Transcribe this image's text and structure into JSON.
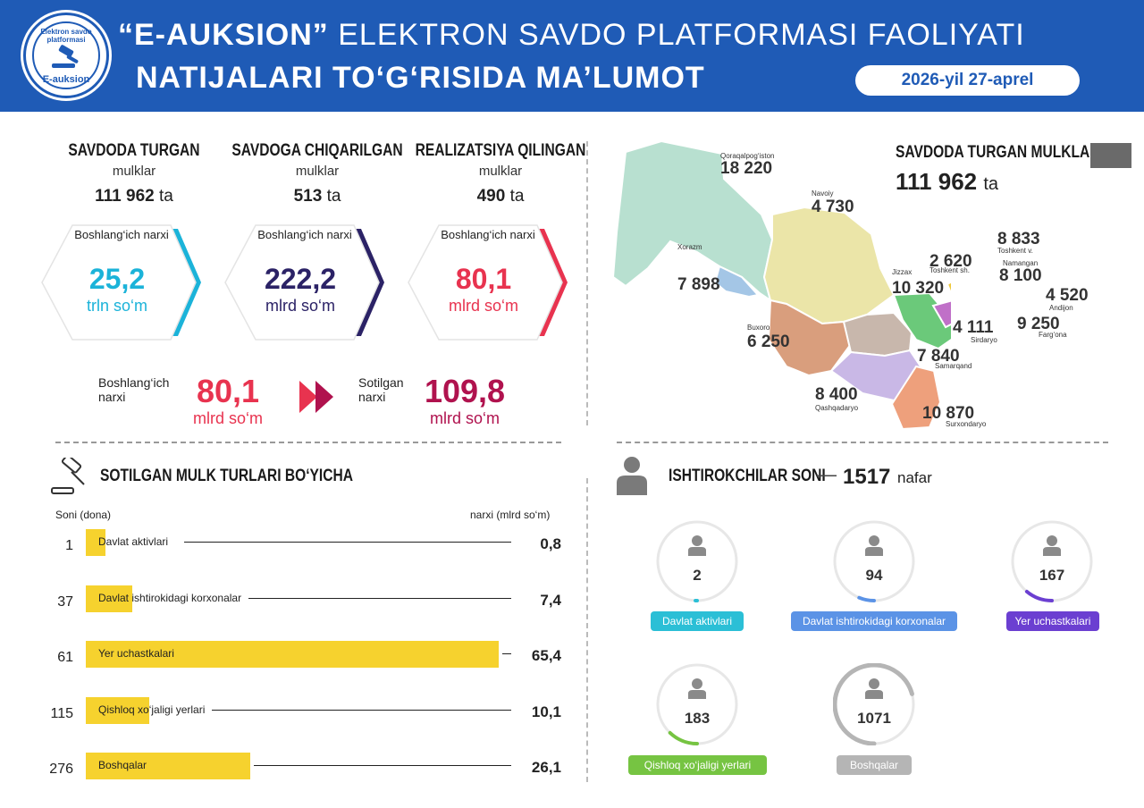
{
  "header": {
    "title_quoted": "“E-AUKSION”",
    "title_rest": "ELEKTRON SAVDO PLATFORMASI FAOLIYATI",
    "title_line2": "NATIJALARI TO‘G‘RISIDA MA’LUMOT",
    "date": "2026-yil 27-aprel",
    "logo_top": "Elektron savdo platformasi",
    "logo_bottom": "E-auksion"
  },
  "stats": [
    {
      "title": "SAVDODA TURGAN",
      "sub": "mulklar",
      "count": "111 962",
      "count_unit": "ta",
      "hex_label": "Boshlang‘ich narxi",
      "hex_value": "25,2",
      "hex_unit": "trln so‘m",
      "color": "#1bb3d9"
    },
    {
      "title": "SAVDOGA CHIQARILGAN",
      "sub": "mulklar",
      "count": "513",
      "count_unit": "ta",
      "hex_label": "Boshlang‘ich narxi",
      "hex_value": "222,2",
      "hex_unit": "mlrd so‘m",
      "color": "#2b2266"
    },
    {
      "title": "REALIZATSIYA QILINGAN",
      "sub": "mulklar",
      "count": "490",
      "count_unit": "ta",
      "hex_label": "Boshlang‘ich narxi",
      "hex_value": "80,1",
      "hex_unit": "mlrd so‘m",
      "color": "#e8334f"
    }
  ],
  "compare": {
    "start_label": "Boshlang‘ich narxi",
    "start_value": "80,1",
    "start_unit": "mlrd so‘m",
    "sold_label": "Sotilgan narxi",
    "sold_value": "109,8",
    "sold_unit": "mlrd so‘m",
    "start_color": "#e8334f",
    "sold_color": "#b0124e"
  },
  "map": {
    "title": "SAVDODA TURGAN MULKLAR",
    "total": "111 962",
    "total_unit": "ta",
    "regions": [
      {
        "name": "Qoraqalpog‘iston",
        "value": "18 220"
      },
      {
        "name": "Navoiy",
        "value": "4 730"
      },
      {
        "name": "Xorazm",
        "value": "7 898"
      },
      {
        "name": "Buxoro",
        "value": "6 250"
      },
      {
        "name": "Jizzax",
        "value": "10 320"
      },
      {
        "name": "Toshkent sh.",
        "value": "2 620"
      },
      {
        "name": "Toshkent v.",
        "value": "8 833"
      },
      {
        "name": "Namangan",
        "value": "8 100"
      },
      {
        "name": "Andijon",
        "value": "4 520"
      },
      {
        "name": "Farg‘ona",
        "value": "9 250"
      },
      {
        "name": "Sirdaryo",
        "value": "4 111"
      },
      {
        "name": "Samarqand",
        "value": "7 840"
      },
      {
        "name": "Qashqadaryo",
        "value": "8 400"
      },
      {
        "name": "Surxondaryo",
        "value": "10 870"
      }
    ]
  },
  "types": {
    "title": "SOTILGAN MULK TURLARI BO‘YICHA",
    "left_header": "Soni (dona)",
    "right_header": "narxi (mlrd so‘m)",
    "rows": [
      {
        "count": "1",
        "label": "Davlat aktivlari",
        "value": 0.8,
        "value_text": "0,8"
      },
      {
        "count": "37",
        "label": "Davlat ishtirokidagi korxonalar",
        "value": 7.4,
        "value_text": "7,4"
      },
      {
        "count": "61",
        "label": "Yer uchastkalari",
        "value": 65.4,
        "value_text": "65,4"
      },
      {
        "count": "115",
        "label": "Qishloq xo‘jaligi yerlari",
        "value": 10.1,
        "value_text": "10,1"
      },
      {
        "count": "276",
        "label": "Boshqalar",
        "value": 26.1,
        "value_text": "26,1"
      }
    ]
  },
  "participants": {
    "title": "ISHTIROKCHILAR SONI",
    "dash": "—",
    "total": "1517",
    "total_unit": "nafar",
    "items": [
      {
        "value": 2,
        "label": "Davlat aktivlari",
        "color": "#2bbfd6"
      },
      {
        "value": 94,
        "label": "Davlat ishtirokidagi korxonalar",
        "color": "#5b93e6"
      },
      {
        "value": 167,
        "label": "Yer uchastkalari",
        "color": "#6b3fd1"
      },
      {
        "value": 183,
        "label": "Qishloq xo‘jaligi yerlari",
        "color": "#76c442"
      },
      {
        "value": 1071,
        "label": "Boshqalar",
        "color": "#b5b5b5"
      }
    ]
  }
}
